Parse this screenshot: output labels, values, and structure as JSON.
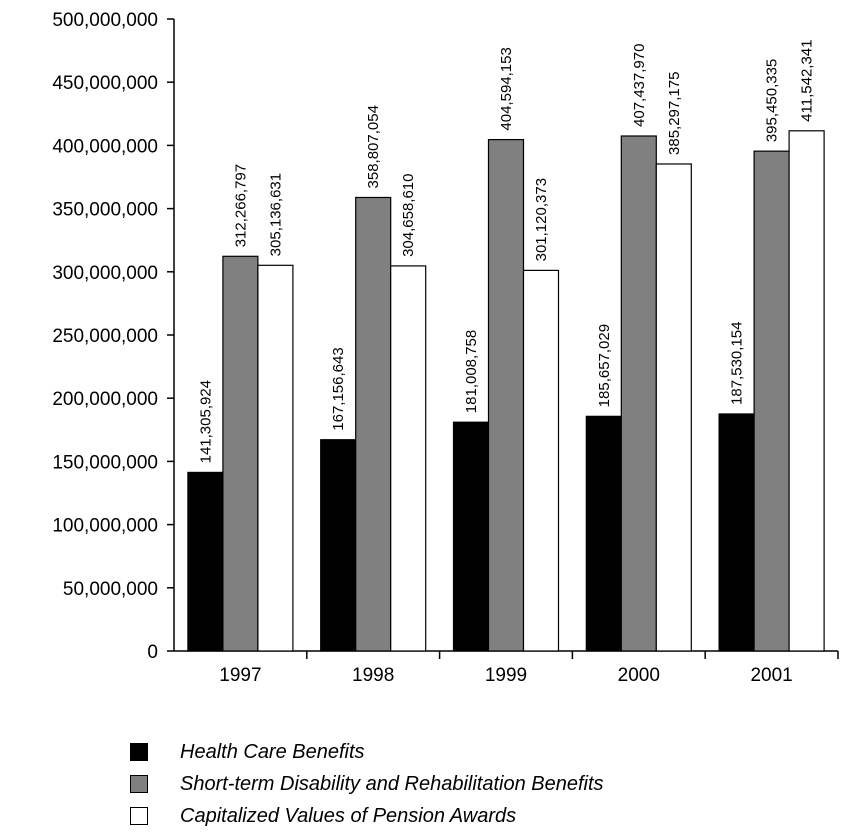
{
  "chart_data": {
    "type": "bar",
    "categories": [
      "1997",
      "1998",
      "1999",
      "2000",
      "2001"
    ],
    "series": [
      {
        "name": "Health Care Benefits",
        "color": "#000000",
        "values": [
          141305924,
          167156643,
          181008758,
          185657029,
          187530154
        ],
        "labels": [
          "141,305,924",
          "167,156,643",
          "181,008,758",
          "185,657,029",
          "187,530,154"
        ]
      },
      {
        "name": "Short-term Disability and Rehabilitation Benefits",
        "color": "#808080",
        "values": [
          312266797,
          358807054,
          404594153,
          407437970,
          395450335
        ],
        "labels": [
          "312,266,797",
          "358,807,054",
          "404,594,153",
          "407,437,970",
          "395,450,335"
        ]
      },
      {
        "name": "Capitalized Values of Pension Awards",
        "color": "#ffffff",
        "values": [
          305136631,
          304658610,
          301120373,
          385297175,
          411542341
        ],
        "labels": [
          "305,136,631",
          "304,658,610",
          "301,120,373",
          "385,297,175",
          "411,542,341"
        ]
      }
    ],
    "y_ticks": [
      "0",
      "50,000,000",
      "100,000,000",
      "150,000,000",
      "200,000,000",
      "250,000,000",
      "300,000,000",
      "350,000,000",
      "400,000,000",
      "450,000,000",
      "500,000,000"
    ],
    "ylim": [
      0,
      500000000
    ],
    "title": "",
    "xlabel": "",
    "ylabel": "",
    "grid": false,
    "legend_position": "bottom-left"
  }
}
